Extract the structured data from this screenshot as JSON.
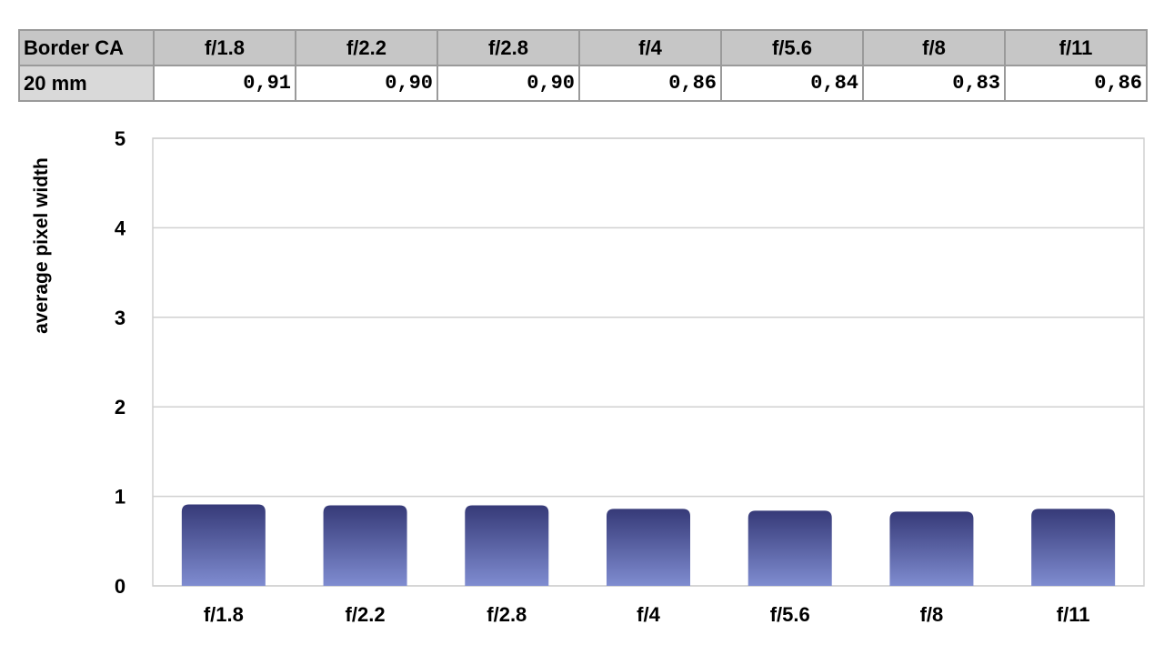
{
  "table": {
    "corner": "Border CA",
    "headers": [
      "f/1.8",
      "f/2.2",
      "f/2.8",
      "f/4",
      "f/5.6",
      "f/8",
      "f/11"
    ],
    "row_label": "20 mm",
    "values": [
      "0,91",
      "0,90",
      "0,90",
      "0,86",
      "0,84",
      "0,83",
      "0,86"
    ]
  },
  "chart_data": {
    "type": "bar",
    "categories": [
      "f/1.8",
      "f/2.2",
      "f/2.8",
      "f/4",
      "f/5.6",
      "f/8",
      "f/11"
    ],
    "values": [
      0.91,
      0.9,
      0.9,
      0.86,
      0.84,
      0.83,
      0.86
    ],
    "ylabel": "average pixel width",
    "xlabel": "",
    "ylim": [
      0,
      5
    ],
    "yticks": [
      0,
      1,
      2,
      3,
      4,
      5
    ],
    "grid": true,
    "bar_color_top": "#363a78",
    "bar_color_bottom": "#7f8cd0"
  }
}
